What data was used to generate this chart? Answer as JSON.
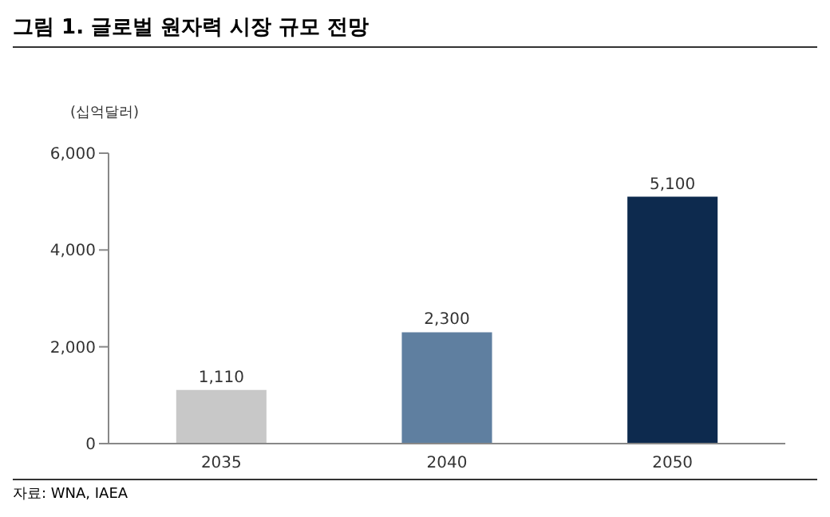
{
  "chart_data": {
    "type": "bar",
    "title": "그림 1. 글로벌 원자력 시장 규모 전망",
    "ylabel": "(십억달러)",
    "categories": [
      "2035",
      "2040",
      "2050"
    ],
    "values": [
      1110,
      2300,
      5100
    ],
    "colors": [
      "#c8c8c8",
      "#5f7fa0",
      "#0d2a4e"
    ],
    "value_labels": [
      "1,110",
      "2,300",
      "5,100"
    ],
    "ylim": [
      0,
      6000
    ],
    "yticks": [
      0,
      {
        "value": 2000,
        "label": "2,000"
      },
      {
        "value": 4000,
        "label": "4,000"
      },
      {
        "value": 6000,
        "label": "6,000"
      }
    ],
    "grid": false,
    "annotations": [
      "자료: WNA, IAEA"
    ]
  }
}
